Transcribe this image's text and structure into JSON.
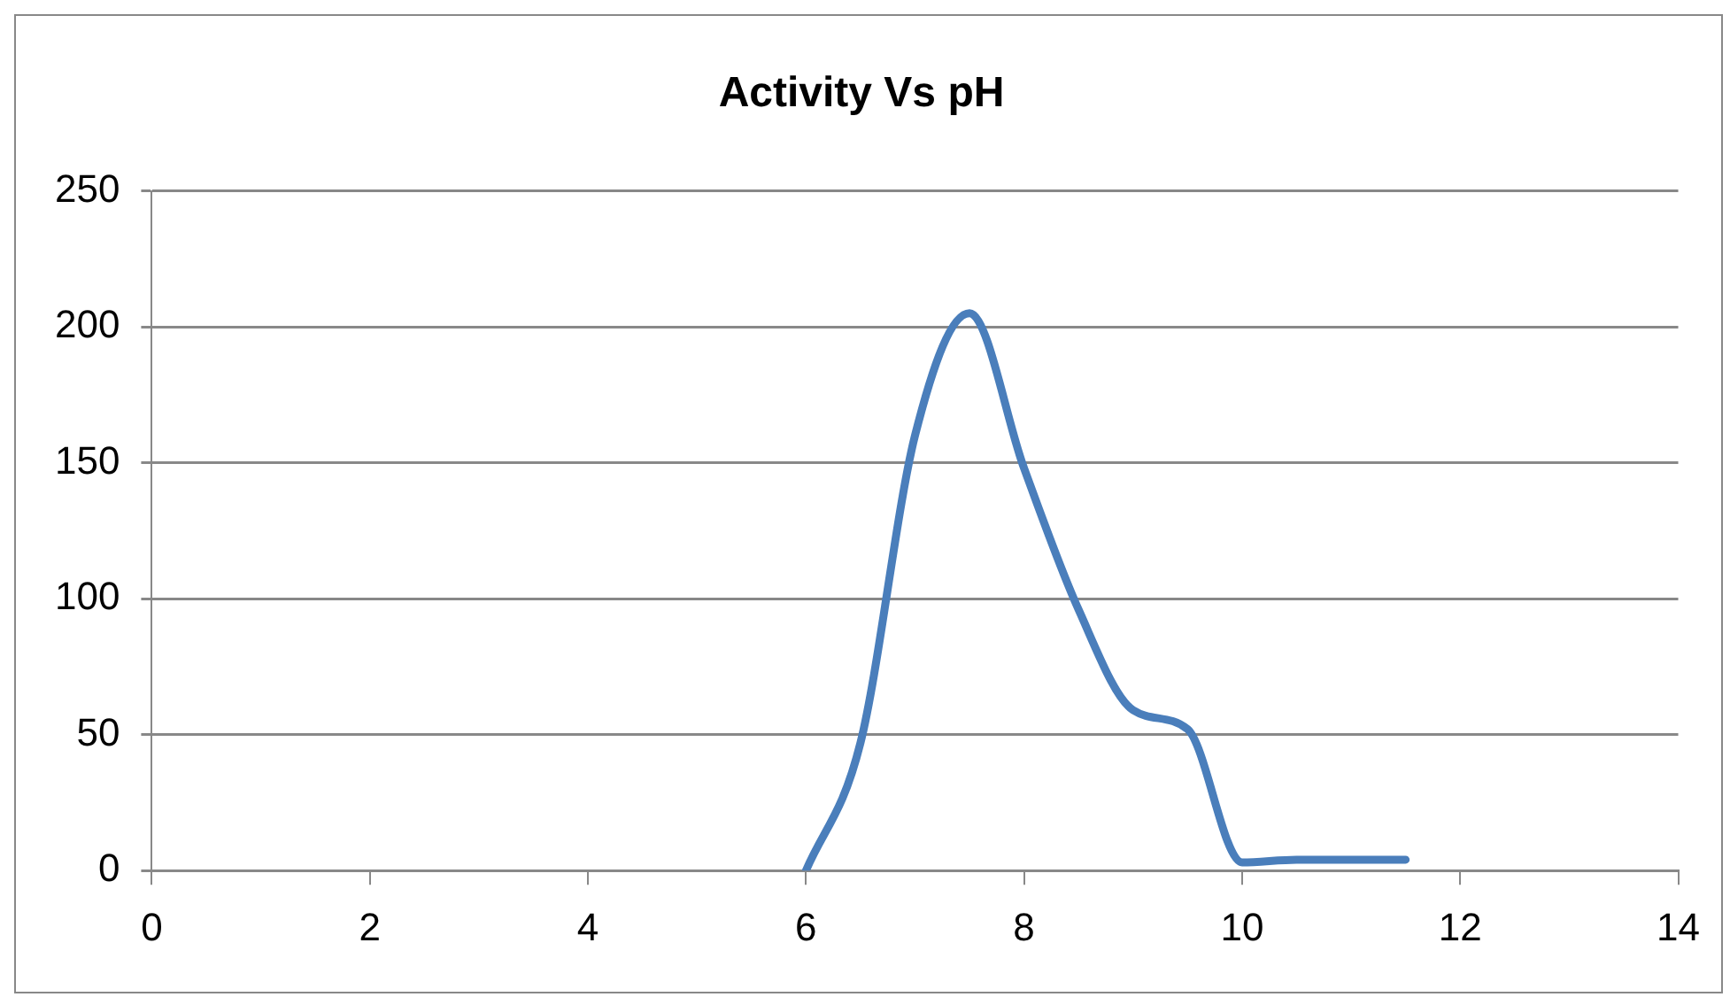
{
  "chart_data": {
    "type": "line",
    "title": "Activity Vs pH",
    "x": [
      6,
      6.5,
      7,
      7.5,
      8,
      8.5,
      9,
      9.5,
      10,
      10.5,
      11,
      11.5
    ],
    "series": [
      {
        "color": "#4a7ebb",
        "values": [
          0,
          47,
          160,
          205,
          148,
          96,
          59,
          52,
          3,
          4,
          4,
          4
        ]
      }
    ],
    "xlim": [
      0,
      14
    ],
    "xticks": [
      0,
      2,
      4,
      6,
      8,
      10,
      12,
      14
    ],
    "ylim": [
      0,
      250
    ],
    "yticks": [
      0,
      50,
      100,
      150,
      200,
      250
    ],
    "grid": "y",
    "legend": false,
    "marker": "none",
    "line_style": "solid"
  }
}
